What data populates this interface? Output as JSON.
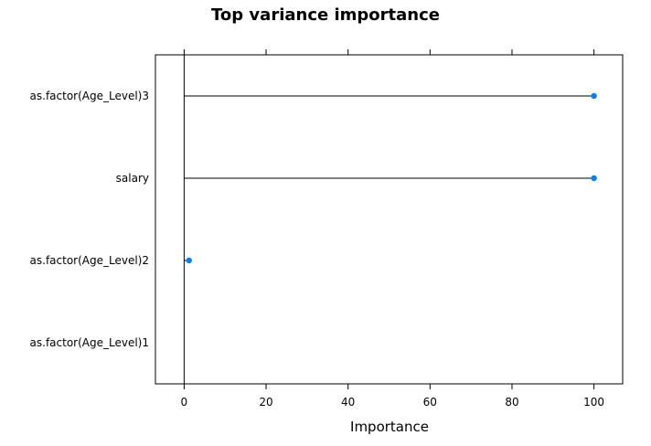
{
  "chart_data": {
    "type": "dotplot",
    "title": "Top variance importance",
    "xlabel": "Importance",
    "ylabel": "",
    "xlim": [
      -7,
      107
    ],
    "x_ticks": [
      0,
      20,
      40,
      60,
      80,
      100
    ],
    "x_tick_labels": [
      "0",
      "20",
      "40",
      "60",
      "80",
      "100"
    ],
    "categories": [
      "as.factor(Age_Level)3",
      "salary",
      "as.factor(Age_Level)2",
      "as.factor(Age_Level)1"
    ],
    "values": [
      100,
      100,
      1.2,
      0
    ],
    "point_color": "#0080ff",
    "grid": false,
    "legend": "none"
  }
}
